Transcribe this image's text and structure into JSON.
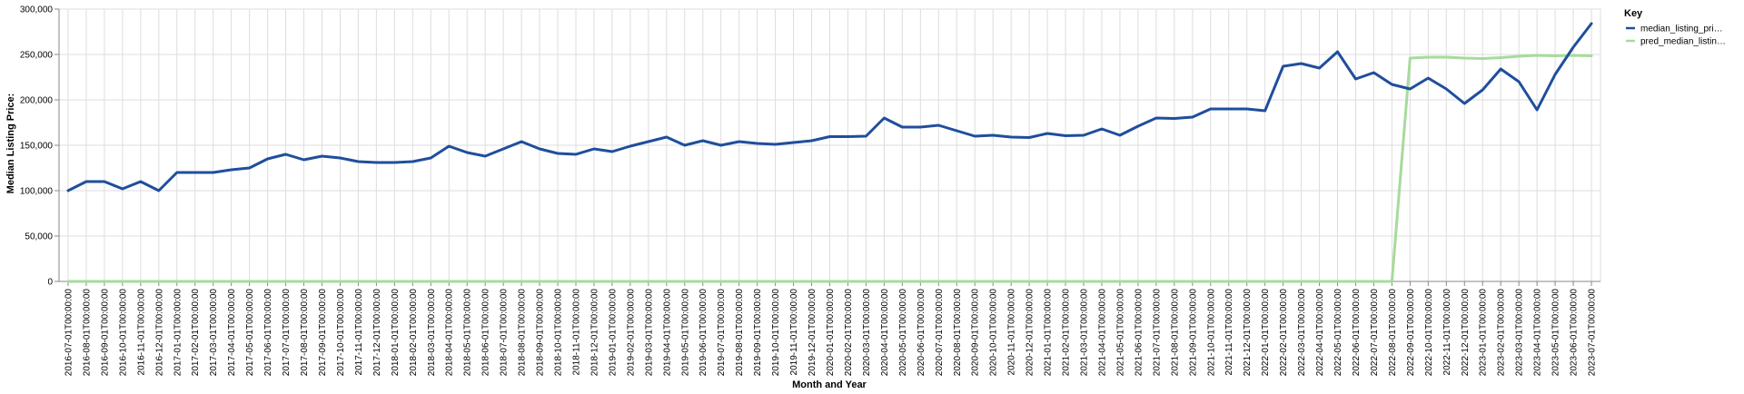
{
  "chart_data": {
    "type": "line",
    "title": "",
    "xlabel": "Month and Year",
    "ylabel": "Median Listing Price:",
    "ylim": [
      0,
      300000
    ],
    "y_ticks": [
      "0",
      "50,000",
      "100,000",
      "150,000",
      "200,000",
      "250,000",
      "300,000"
    ],
    "y_tick_values": [
      0,
      50000,
      100000,
      150000,
      200000,
      250000,
      300000
    ],
    "grid": true,
    "legend": {
      "title": "Key",
      "placement": "right",
      "entries": [
        "median_listing_pri…",
        "pred_median_listin…"
      ]
    },
    "x": [
      "2016-07-01T00:00:00",
      "2016-08-01T00:00:00",
      "2016-09-01T00:00:00",
      "2016-10-01T00:00:00",
      "2016-11-01T00:00:00",
      "2016-12-01T00:00:00",
      "2017-01-01T00:00:00",
      "2017-02-01T00:00:00",
      "2017-03-01T00:00:00",
      "2017-04-01T00:00:00",
      "2017-05-01T00:00:00",
      "2017-06-01T00:00:00",
      "2017-07-01T00:00:00",
      "2017-08-01T00:00:00",
      "2017-09-01T00:00:00",
      "2017-10-01T00:00:00",
      "2017-11-01T00:00:00",
      "2017-12-01T00:00:00",
      "2018-01-01T00:00:00",
      "2018-02-01T00:00:00",
      "2018-03-01T00:00:00",
      "2018-04-01T00:00:00",
      "2018-05-01T00:00:00",
      "2018-06-01T00:00:00",
      "2018-07-01T00:00:00",
      "2018-08-01T00:00:00",
      "2018-09-01T00:00:00",
      "2018-10-01T00:00:00",
      "2018-11-01T00:00:00",
      "2018-12-01T00:00:00",
      "2019-01-01T00:00:00",
      "2019-02-01T00:00:00",
      "2019-03-01T00:00:00",
      "2019-04-01T00:00:00",
      "2019-05-01T00:00:00",
      "2019-06-01T00:00:00",
      "2019-07-01T00:00:00",
      "2019-08-01T00:00:00",
      "2019-09-01T00:00:00",
      "2019-10-01T00:00:00",
      "2019-11-01T00:00:00",
      "2019-12-01T00:00:00",
      "2020-01-01T00:00:00",
      "2020-02-01T00:00:00",
      "2020-03-01T00:00:00",
      "2020-04-01T00:00:00",
      "2020-05-01T00:00:00",
      "2020-06-01T00:00:00",
      "2020-07-01T00:00:00",
      "2020-08-01T00:00:00",
      "2020-09-01T00:00:00",
      "2020-10-01T00:00:00",
      "2020-11-01T00:00:00",
      "2020-12-01T00:00:00",
      "2021-01-01T00:00:00",
      "2021-02-01T00:00:00",
      "2021-03-01T00:00:00",
      "2021-04-01T00:00:00",
      "2021-05-01T00:00:00",
      "2021-06-01T00:00:00",
      "2021-07-01T00:00:00",
      "2021-08-01T00:00:00",
      "2021-09-01T00:00:00",
      "2021-10-01T00:00:00",
      "2021-11-01T00:00:00",
      "2021-12-01T00:00:00",
      "2022-01-01T00:00:00",
      "2022-02-01T00:00:00",
      "2022-03-01T00:00:00",
      "2022-04-01T00:00:00",
      "2022-05-01T00:00:00",
      "2022-06-01T00:00:00",
      "2022-07-01T00:00:00",
      "2022-08-01T00:00:00",
      "2022-09-01T00:00:00",
      "2022-10-01T00:00:00",
      "2022-11-01T00:00:00",
      "2022-12-01T00:00:00",
      "2023-01-01T00:00:00",
      "2023-02-01T00:00:00",
      "2023-03-01T00:00:00",
      "2023-04-01T00:00:00",
      "2023-05-01T00:00:00",
      "2023-06-01T00:00:00",
      "2023-07-01T00:00:00"
    ],
    "series": [
      {
        "name": "median_listing_pri…",
        "color": "#1f4e9c",
        "values": [
          100000,
          110000,
          110000,
          102000,
          110000,
          100000,
          120000,
          120000,
          120000,
          123000,
          125000,
          135000,
          140000,
          134000,
          138000,
          136000,
          132000,
          131000,
          131000,
          132000,
          136000,
          149000,
          142000,
          138000,
          146000,
          154000,
          146000,
          141000,
          140000,
          146000,
          143000,
          149000,
          154000,
          159000,
          150000,
          155000,
          150000,
          154000,
          152000,
          151000,
          153000,
          155000,
          159500,
          159500,
          160000,
          180000,
          170000,
          170000,
          172000,
          166000,
          160000,
          161000,
          159000,
          158500,
          163000,
          160500,
          161000,
          168000,
          161000,
          171000,
          180000,
          179500,
          181000,
          190000,
          190000,
          190000,
          188000,
          237000,
          240000,
          235000,
          253000,
          223000,
          230000,
          217000,
          212000,
          224000,
          212000,
          196000,
          211000,
          234000,
          220000,
          189000,
          228000,
          258000,
          284000
        ]
      },
      {
        "name": "pred_median_listin…",
        "color": "#a6db9c",
        "values": [
          0,
          0,
          0,
          0,
          0,
          0,
          0,
          0,
          0,
          0,
          0,
          0,
          0,
          0,
          0,
          0,
          0,
          0,
          0,
          0,
          0,
          0,
          0,
          0,
          0,
          0,
          0,
          0,
          0,
          0,
          0,
          0,
          0,
          0,
          0,
          0,
          0,
          0,
          0,
          0,
          0,
          0,
          0,
          0,
          0,
          0,
          0,
          0,
          0,
          0,
          0,
          0,
          0,
          0,
          0,
          0,
          0,
          0,
          0,
          0,
          0,
          0,
          0,
          0,
          0,
          0,
          0,
          0,
          0,
          0,
          0,
          0,
          0,
          0,
          246000,
          247000,
          247000,
          246000,
          245500,
          246500,
          248000,
          249000,
          248500,
          249000,
          248500
        ]
      }
    ]
  }
}
